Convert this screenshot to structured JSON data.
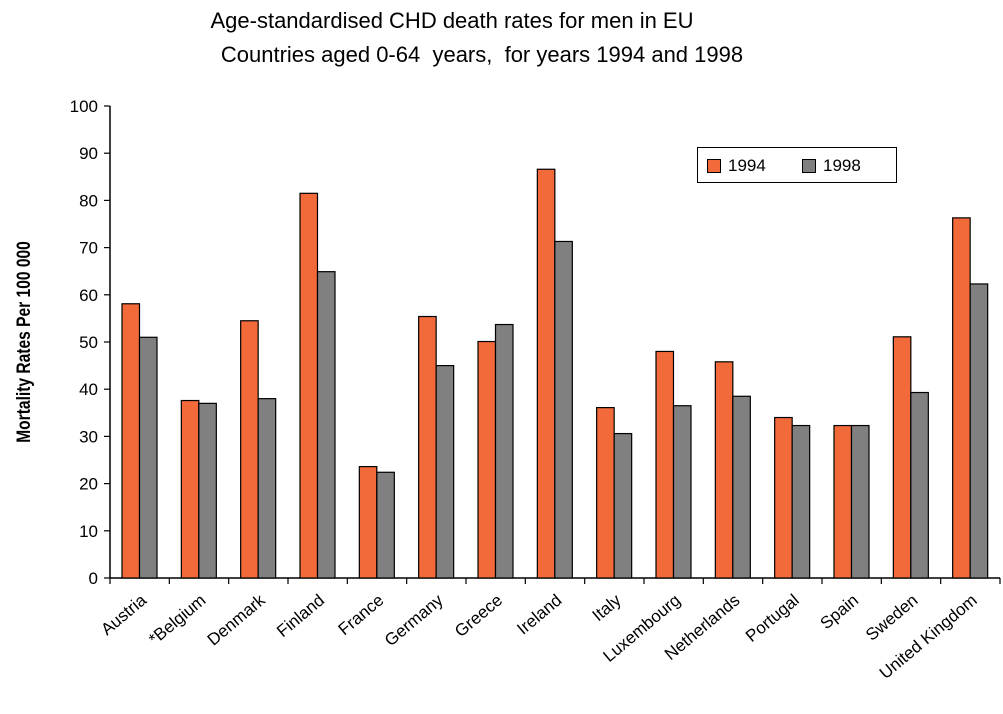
{
  "chart_data": {
    "type": "bar",
    "title": "Age-standardised CHD death rates for men in EU",
    "subtitle": "Countries aged 0-64  years,  for years 1994 and 1998",
    "xlabel": "",
    "ylabel": "Mortality Rates Per 100 000",
    "ylim": [
      0,
      100
    ],
    "yticks": [
      0,
      10,
      20,
      30,
      40,
      50,
      60,
      70,
      80,
      90,
      100
    ],
    "grid": false,
    "legend_position": "top-right",
    "categories": [
      "Austria",
      "*Belgium",
      "Denmark",
      "Finland",
      "France",
      "Germany",
      "Greece",
      "Ireland",
      "Italy",
      "Luxembourg",
      "Netherlands",
      "Portugal",
      "Spain",
      "Sweden",
      "United Kingdom"
    ],
    "series": [
      {
        "name": "1994",
        "color": "#f26a3a",
        "values": [
          58.1,
          37.6,
          54.5,
          81.5,
          23.6,
          55.4,
          50.1,
          86.6,
          36.1,
          48.0,
          45.8,
          34.0,
          32.3,
          51.1,
          76.3
        ]
      },
      {
        "name": "1998",
        "color": "#808080",
        "values": [
          51.0,
          37.0,
          38.0,
          64.9,
          22.4,
          45.0,
          53.7,
          71.3,
          30.6,
          36.5,
          38.5,
          32.3,
          32.3,
          39.3,
          62.3
        ]
      }
    ]
  }
}
